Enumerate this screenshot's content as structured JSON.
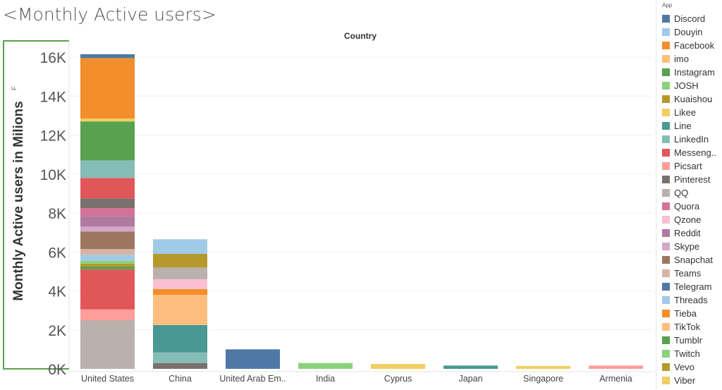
{
  "title": "<Monthly Active users>",
  "chart_data": {
    "type": "bar",
    "stacked": true,
    "column_header": "Country",
    "ylabel": "Monthly Active users in Milions",
    "ylabel_marker": "F",
    "ylim": [
      0,
      16500
    ],
    "yticks": [
      0,
      2000,
      4000,
      6000,
      8000,
      10000,
      12000,
      14000,
      16000
    ],
    "ytick_labels": [
      "0K",
      "2K",
      "4K",
      "6K",
      "8K",
      "10K",
      "12K",
      "14K",
      "16K"
    ],
    "categories": [
      "United States",
      "China",
      "United Arab Em..",
      "India",
      "Cyprus",
      "Japan",
      "Singapore",
      "Armenia"
    ],
    "legend_title": "App",
    "legend": [
      {
        "name": "Discord",
        "color": "#4e79a7"
      },
      {
        "name": "Douyin",
        "color": "#a0cbe8"
      },
      {
        "name": "Facebook",
        "color": "#f28e2b"
      },
      {
        "name": "imo",
        "color": "#ffbe7d"
      },
      {
        "name": "Instagram",
        "color": "#59a14f"
      },
      {
        "name": "JOSH",
        "color": "#8cd17d"
      },
      {
        "name": "Kuaishou",
        "color": "#b6992d"
      },
      {
        "name": "Likee",
        "color": "#f1ce63"
      },
      {
        "name": "Line",
        "color": "#499894"
      },
      {
        "name": "LinkedIn",
        "color": "#86bcb6"
      },
      {
        "name": "Messeng..",
        "color": "#e15759"
      },
      {
        "name": "Picsart",
        "color": "#ff9d9a"
      },
      {
        "name": "Pinterest",
        "color": "#79706e"
      },
      {
        "name": "QQ",
        "color": "#bab0ac"
      },
      {
        "name": "Quora",
        "color": "#d37295"
      },
      {
        "name": "Qzone",
        "color": "#fabfd2"
      },
      {
        "name": "Reddit",
        "color": "#b07aa1"
      },
      {
        "name": "Skype",
        "color": "#d4a6c8"
      },
      {
        "name": "Snapchat",
        "color": "#9d7660"
      },
      {
        "name": "Teams",
        "color": "#d7b5a6"
      },
      {
        "name": "Telegram",
        "color": "#4e79a7"
      },
      {
        "name": "Threads",
        "color": "#a0cbe8"
      },
      {
        "name": "Tieba",
        "color": "#f28e2b"
      },
      {
        "name": "TikTok",
        "color": "#ffbe7d"
      },
      {
        "name": "Tumblr",
        "color": "#59a14f"
      },
      {
        "name": "Twitch",
        "color": "#8cd17d"
      },
      {
        "name": "Vevo",
        "color": "#b6992d"
      },
      {
        "name": "Viber",
        "color": "#f1ce63"
      }
    ],
    "stacks": [
      {
        "category": "United States",
        "segments": [
          {
            "app": "QQ",
            "value": 2500
          },
          {
            "app": "Picsart",
            "value": 550
          },
          {
            "app": "Messeng..",
            "value": 2050
          },
          {
            "app": "Instagram",
            "value": 150
          },
          {
            "app": "Vevo",
            "value": 150
          },
          {
            "app": "JOSH",
            "value": 150
          },
          {
            "app": "Douyin",
            "value": 300
          },
          {
            "app": "Teams",
            "value": 300
          },
          {
            "app": "Snapchat",
            "value": 900
          },
          {
            "app": "Skype",
            "value": 250
          },
          {
            "app": "Reddit",
            "value": 550
          },
          {
            "app": "Quora",
            "value": 400
          },
          {
            "app": "Pinterest",
            "value": 500
          },
          {
            "app": "Messeng..",
            "value": 1050
          },
          {
            "app": "LinkedIn",
            "value": 900
          },
          {
            "app": "Instagram",
            "value": 2000
          },
          {
            "app": "Likee",
            "value": 150
          },
          {
            "app": "Facebook",
            "value": 3100
          },
          {
            "app": "Discord",
            "value": 200
          }
        ]
      },
      {
        "category": "China",
        "segments": [
          {
            "app": "Pinterest",
            "value": 300
          },
          {
            "app": "LinkedIn",
            "value": 550
          },
          {
            "app": "Line",
            "value": 1400
          },
          {
            "app": "TikTok",
            "value": 1550
          },
          {
            "app": "Facebook",
            "value": 300
          },
          {
            "app": "Qzone",
            "value": 500
          },
          {
            "app": "QQ",
            "value": 600
          },
          {
            "app": "Vevo",
            "value": 700
          },
          {
            "app": "Threads",
            "value": 750
          }
        ]
      },
      {
        "category": "United Arab Em..",
        "segments": [
          {
            "app": "Telegram",
            "value": 1000
          }
        ]
      },
      {
        "category": "India",
        "segments": [
          {
            "app": "JOSH",
            "value": 300
          }
        ]
      },
      {
        "category": "Cyprus",
        "segments": [
          {
            "app": "Likee",
            "value": 250
          }
        ]
      },
      {
        "category": "Japan",
        "segments": [
          {
            "app": "Line",
            "value": 170
          }
        ]
      },
      {
        "category": "Singapore",
        "segments": [
          {
            "app": "Likee",
            "value": 150
          }
        ]
      },
      {
        "category": "Armenia",
        "segments": [
          {
            "app": "Picsart",
            "value": 170
          }
        ]
      }
    ]
  }
}
